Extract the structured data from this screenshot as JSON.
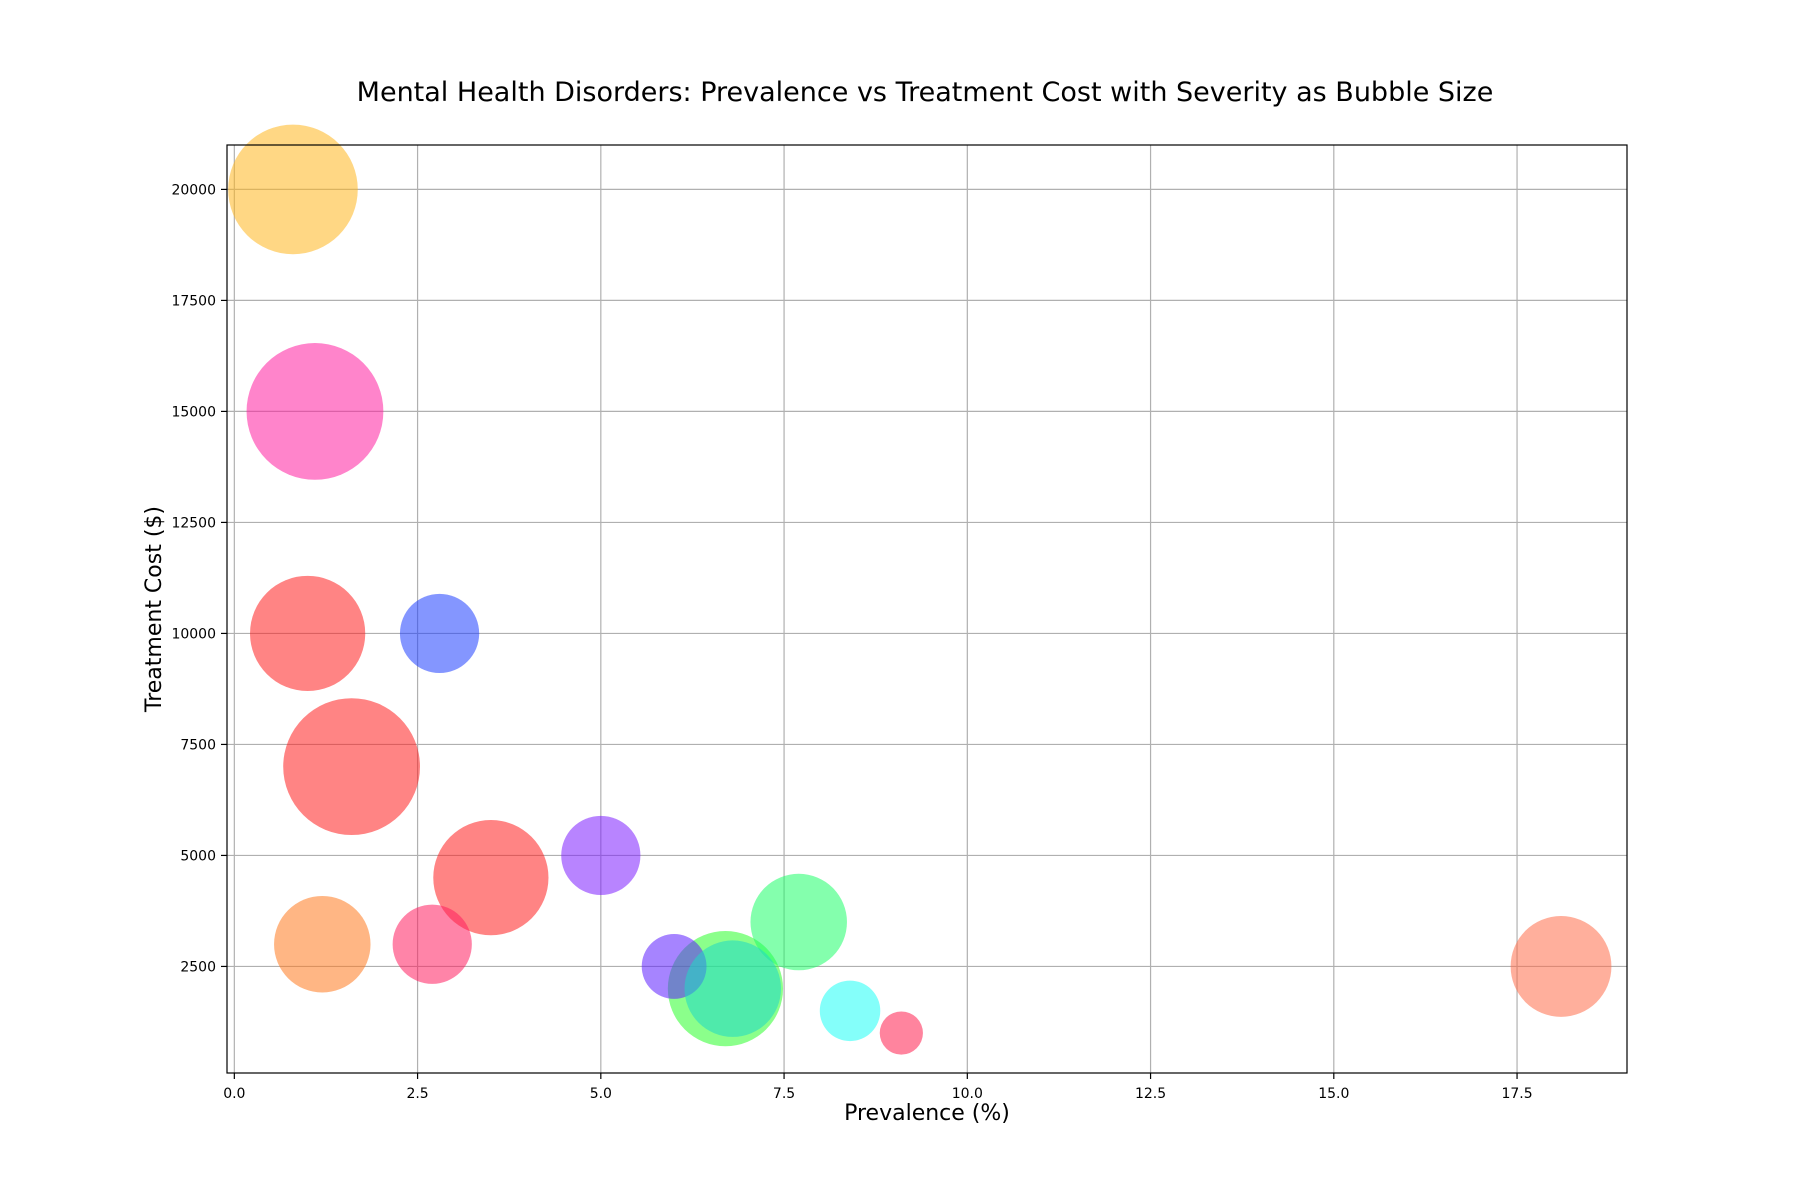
{
  "chart_data": {
    "type": "scatter",
    "title": "Mental Health Disorders: Prevalence vs Treatment Cost with Severity as Bubble Size",
    "xlabel": "Prevalence (%)",
    "ylabel": "Treatment Cost ($)",
    "xlim": [
      -0.1,
      19.0
    ],
    "ylim": [
      100,
      21000
    ],
    "xticks": [
      0.0,
      2.5,
      5.0,
      7.5,
      10.0,
      12.5,
      15.0,
      17.5
    ],
    "xtick_labels": [
      "0.0",
      "2.5",
      "5.0",
      "7.5",
      "10.0",
      "12.5",
      "15.0",
      "17.5"
    ],
    "yticks": [
      2500,
      5000,
      7500,
      10000,
      12500,
      15000,
      17500,
      20000
    ],
    "ytick_labels": [
      "2500",
      "5000",
      "7500",
      "10000",
      "12500",
      "15000",
      "17500",
      "20000"
    ],
    "grid": true,
    "points": [
      {
        "x": 18.1,
        "y": 2500,
        "severity": 7.0,
        "color": "#ff6e4a"
      },
      {
        "x": 6.7,
        "y": 2000,
        "severity": 8.0,
        "color": "#2cff2c"
      },
      {
        "x": 9.1,
        "y": 1000,
        "severity": 3.0,
        "color": "#ff1f4f"
      },
      {
        "x": 3.5,
        "y": 4500,
        "severity": 8.0,
        "color": "#ff1f1f"
      },
      {
        "x": 1.6,
        "y": 7000,
        "severity": 9.5,
        "color": "#ff1f1f"
      },
      {
        "x": 1.0,
        "y": 10000,
        "severity": 8.0,
        "color": "#ff1f1f"
      },
      {
        "x": 1.1,
        "y": 15000,
        "severity": 9.5,
        "color": "#ff1fa0"
      },
      {
        "x": 0.8,
        "y": 20000,
        "severity": 9.0,
        "color": "#ffb61f"
      },
      {
        "x": 2.8,
        "y": 10000,
        "severity": 5.5,
        "color": "#1f40ff"
      },
      {
        "x": 5.0,
        "y": 5000,
        "severity": 5.5,
        "color": "#7d1fff"
      },
      {
        "x": 6.0,
        "y": 2500,
        "severity": 4.5,
        "color": "#5d1fff"
      },
      {
        "x": 7.7,
        "y": 3500,
        "severity": 6.7,
        "color": "#1fff6a"
      },
      {
        "x": 6.8,
        "y": 2000,
        "severity": 6.7,
        "color": "#1fd9c6"
      },
      {
        "x": 8.4,
        "y": 1500,
        "severity": 4.2,
        "color": "#1ffff6"
      },
      {
        "x": 2.7,
        "y": 3000,
        "severity": 5.5,
        "color": "#ff1f60"
      },
      {
        "x": 1.2,
        "y": 3000,
        "severity": 6.7,
        "color": "#ff7a1f"
      }
    ]
  }
}
